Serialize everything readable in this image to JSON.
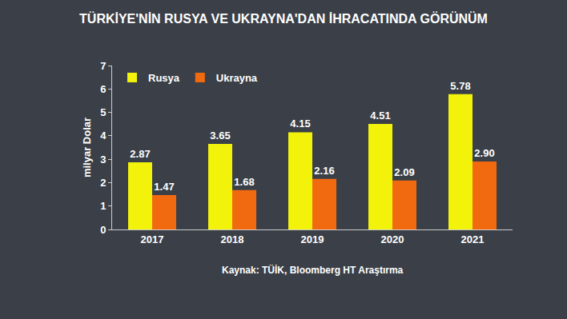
{
  "chart_data": {
    "type": "bar",
    "title": "TÜRKİYE'NİN RUSYA VE UKRAYNA'DAN İHRACATINDA GÖRÜNÜM",
    "y_label": "milyar Dolar",
    "source": "Kaynak: TÜİK, Bloomberg HT Araştırma",
    "categories": [
      "2017",
      "2018",
      "2019",
      "2020",
      "2021"
    ],
    "series": [
      {
        "name": "Rusya",
        "color": "#f2f20a",
        "values": [
          2.87,
          3.65,
          4.15,
          4.51,
          5.78
        ],
        "value_labels": [
          "2.87",
          "3.65",
          "4.15",
          "4.51",
          "5.78"
        ]
      },
      {
        "name": "Ukrayna",
        "color": "#f26a10",
        "values": [
          1.47,
          1.68,
          2.16,
          2.09,
          2.9
        ],
        "value_labels": [
          "1.47",
          "1.68",
          "2.16",
          "2.09",
          "2.90"
        ]
      }
    ],
    "ylim": [
      0,
      7
    ],
    "yticks": [
      0,
      1,
      2,
      3,
      4,
      5,
      6,
      7
    ],
    "grid": false,
    "legend": "upper left",
    "data_labels": true
  }
}
